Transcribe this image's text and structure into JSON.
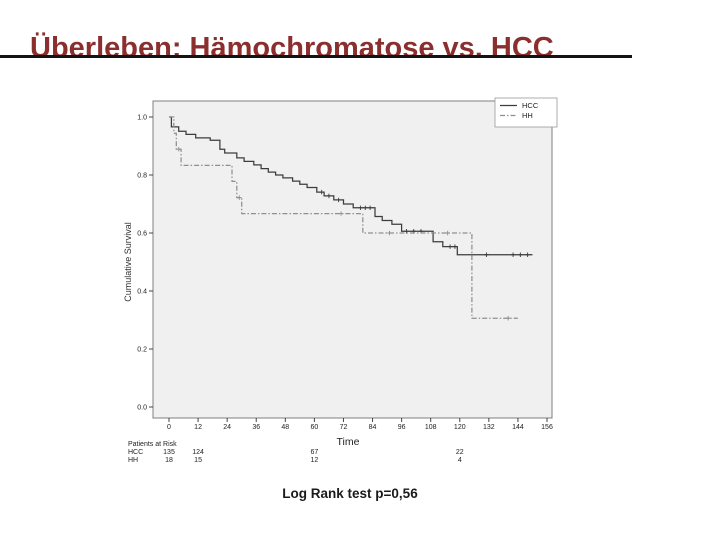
{
  "slide": {
    "title": "Überleben: Hämochromatose vs. HCC",
    "title_color": "#8b2e2e",
    "caption": "Log Rank test p=0,56"
  },
  "chart_data": {
    "type": "line",
    "subtype": "kaplan-meier-step",
    "title": "",
    "xlabel": "Time",
    "ylabel": "Cumulative Survival",
    "xlim": [
      0,
      156
    ],
    "ylim": [
      0.0,
      1.0
    ],
    "x_ticks": [
      0,
      12,
      24,
      36,
      48,
      60,
      72,
      84,
      96,
      108,
      120,
      132,
      144,
      156
    ],
    "y_ticks": [
      "0.0",
      "0.2",
      "0.4",
      "0.6",
      "0.8",
      "1.0"
    ],
    "grid": false,
    "legend_position": "top-right",
    "plot_bg": "#f0f0f0",
    "frame_color": "#7f7f7f",
    "series": [
      {
        "name": "HCC",
        "style": "solid",
        "color": "#3c3c3c",
        "steps": [
          [
            0,
            1.0
          ],
          [
            1,
            0.966
          ],
          [
            4,
            0.951
          ],
          [
            7,
            0.94
          ],
          [
            11,
            0.928
          ],
          [
            17,
            0.92
          ],
          [
            21,
            0.889
          ],
          [
            23,
            0.876
          ],
          [
            28,
            0.859
          ],
          [
            31,
            0.847
          ],
          [
            35,
            0.835
          ],
          [
            38,
            0.822
          ],
          [
            41,
            0.81
          ],
          [
            44,
            0.8
          ],
          [
            47,
            0.79
          ],
          [
            51,
            0.779
          ],
          [
            54,
            0.768
          ],
          [
            57,
            0.757
          ],
          [
            61,
            0.741
          ],
          [
            64,
            0.728
          ],
          [
            68,
            0.714
          ],
          [
            72,
            0.7
          ],
          [
            76,
            0.687
          ],
          [
            85,
            0.657
          ],
          [
            88,
            0.643
          ],
          [
            92,
            0.63
          ],
          [
            96,
            0.606
          ],
          [
            109,
            0.57
          ],
          [
            113,
            0.553
          ],
          [
            119,
            0.525
          ]
        ],
        "end_t": 150,
        "censors": [
          [
            63,
            0.741
          ],
          [
            66,
            0.728
          ],
          [
            70,
            0.714
          ],
          [
            79,
            0.687
          ],
          [
            81,
            0.687
          ],
          [
            83,
            0.687
          ],
          [
            98,
            0.606
          ],
          [
            101,
            0.606
          ],
          [
            104,
            0.606
          ],
          [
            116,
            0.553
          ],
          [
            118,
            0.553
          ],
          [
            131,
            0.525
          ],
          [
            142,
            0.525
          ],
          [
            145,
            0.525
          ],
          [
            148,
            0.525
          ]
        ]
      },
      {
        "name": "HH",
        "style": "dash-dot",
        "color": "#8f8f8f",
        "steps": [
          [
            0,
            1.0
          ],
          [
            2,
            0.944
          ],
          [
            3,
            0.889
          ],
          [
            5,
            0.833
          ],
          [
            26,
            0.778
          ],
          [
            28,
            0.722
          ],
          [
            30,
            0.667
          ],
          [
            80,
            0.6
          ],
          [
            125,
            0.306
          ]
        ],
        "end_t": 144,
        "censors": [
          [
            4,
            0.889
          ],
          [
            29,
            0.722
          ],
          [
            71,
            0.667
          ],
          [
            91,
            0.6
          ],
          [
            115,
            0.6
          ],
          [
            140,
            0.306
          ]
        ]
      }
    ],
    "patients_at_risk": {
      "label": "Patients at Risk",
      "times": [
        0,
        12,
        60,
        120
      ],
      "rows": [
        {
          "name": "HCC",
          "counts": [
            135,
            124,
            67,
            22
          ]
        },
        {
          "name": "HH",
          "counts": [
            18,
            15,
            12,
            4
          ]
        }
      ]
    }
  }
}
